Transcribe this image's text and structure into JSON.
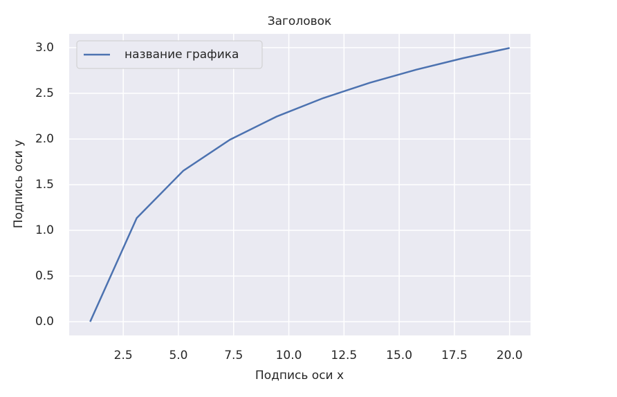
{
  "chart_data": {
    "type": "line",
    "title": "Заголовок",
    "x_label": "Подпись оси x",
    "y_label": "Подпись оси y",
    "x": [
      1,
      3.111,
      5.222,
      7.333,
      9.444,
      11.556,
      13.667,
      15.778,
      17.889,
      20
    ],
    "series": [
      {
        "name": "название графика",
        "color": "#4c72b0",
        "values": [
          0,
          1.135,
          1.653,
          1.992,
          2.245,
          2.447,
          2.615,
          2.759,
          2.884,
          2.996
        ]
      }
    ],
    "xlim": [
      0.05,
      20.95
    ],
    "ylim": [
      -0.15,
      3.15
    ],
    "xticks": [
      2.5,
      {
        "value": 5,
        "label": "5.0"
      },
      7.5,
      {
        "value": 10,
        "label": "10.0"
      },
      12.5,
      {
        "value": 15,
        "label": "15.0"
      },
      17.5,
      {
        "value": 20,
        "label": "20.0"
      }
    ],
    "yticks": [
      {
        "value": 0,
        "label": "0.0"
      },
      0.5,
      {
        "value": 1,
        "label": "1.0"
      },
      1.5,
      {
        "value": 2,
        "label": "2.0"
      },
      2.5,
      {
        "value": 3,
        "label": "3.0"
      }
    ],
    "grid": true,
    "background": "#eaeaf2",
    "legend": "upper-left"
  }
}
